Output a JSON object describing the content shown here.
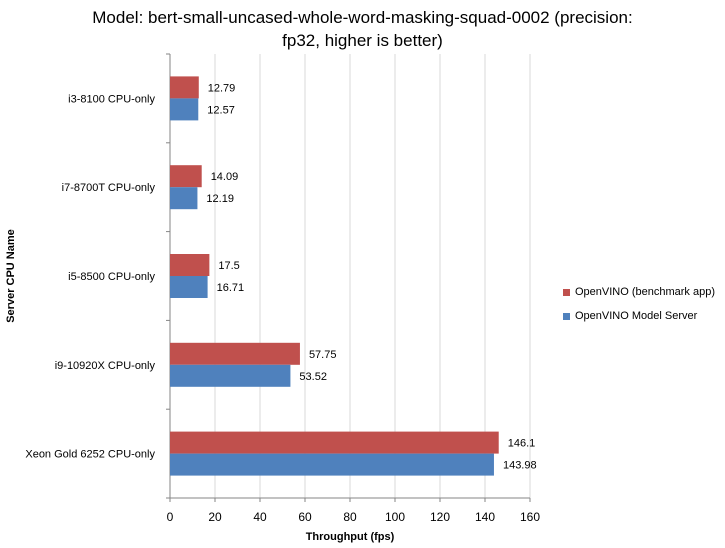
{
  "chart_data": {
    "type": "bar",
    "orientation": "horizontal",
    "title_lines": [
      "Model: bert-small-uncased-whole-word-masking-squad-0002 (precision:",
      "fp32, higher is better)"
    ],
    "xlabel": "Throughput (fps)",
    "ylabel": "Server CPU Name",
    "xlim": [
      0,
      160
    ],
    "xticks": [
      0,
      20,
      40,
      60,
      80,
      100,
      120,
      140,
      160
    ],
    "grid": true,
    "legend_position": "right",
    "categories": [
      "i3-8100 CPU-only",
      "i7-8700T CPU-only",
      "i5-8500 CPU-only",
      "i9-10920X CPU-only",
      "Xeon Gold 6252 CPU-only"
    ],
    "series": [
      {
        "name": "OpenVINO (benchmark app)",
        "color": "#c0504d",
        "values": [
          12.79,
          14.09,
          17.5,
          57.75,
          146.1
        ]
      },
      {
        "name": "OpenVINO Model Server",
        "color": "#4f81bd",
        "values": [
          12.57,
          12.19,
          16.71,
          53.52,
          143.98
        ]
      }
    ]
  }
}
